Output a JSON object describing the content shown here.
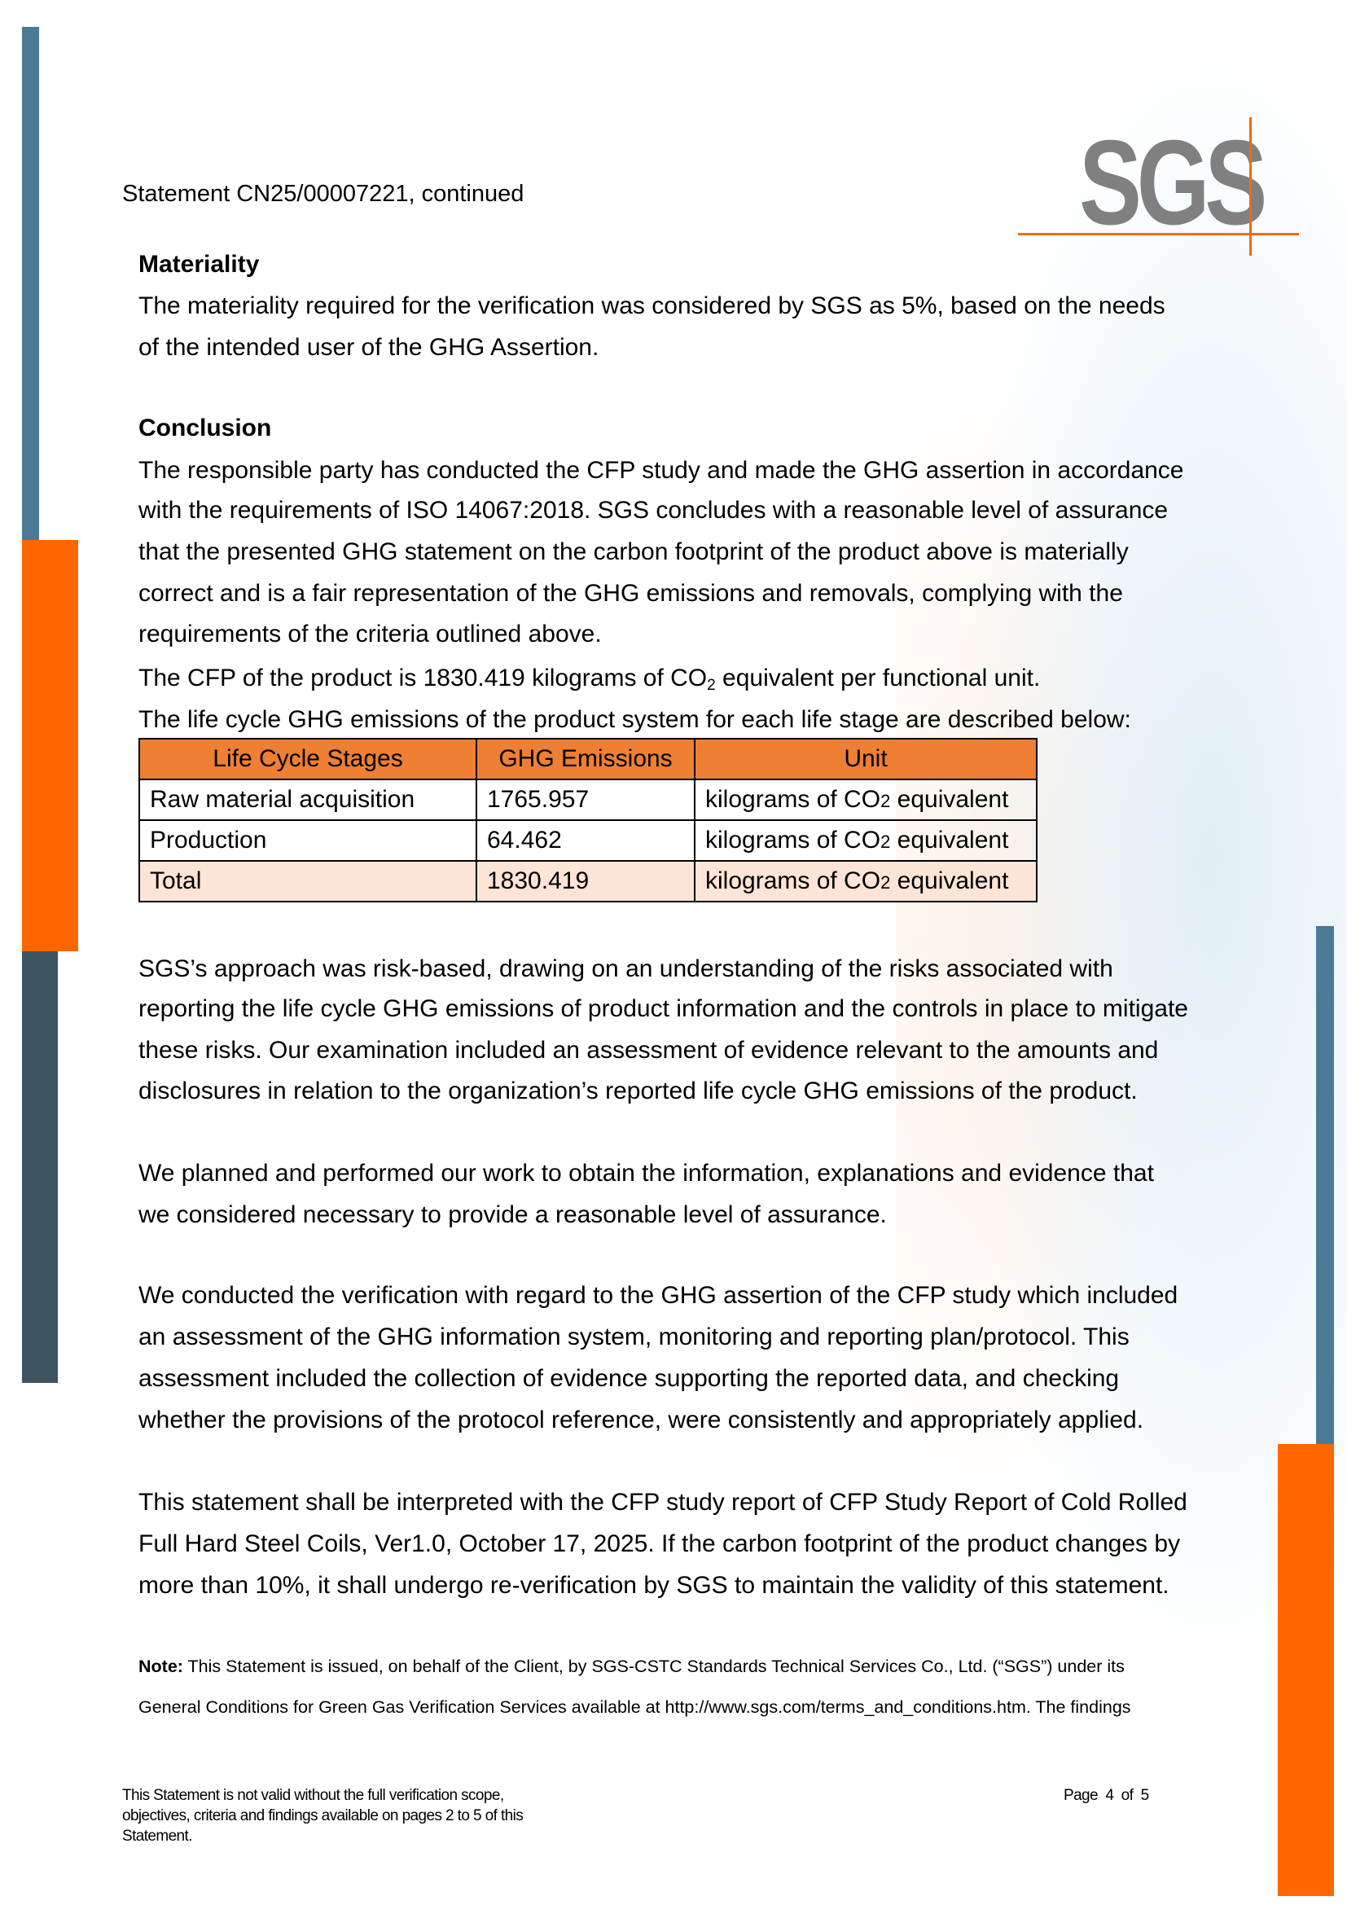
{
  "header": {
    "statement": "Statement CN25/00007221, continued",
    "logo": "SGS",
    "colors": {
      "logo_gray": "#808080",
      "accent_orange": "#f06a0f",
      "bar_blue": "#4a7a95",
      "bar_dark": "#3d5460"
    }
  },
  "materiality": {
    "heading": "Materiality",
    "lines": [
      "The materiality required for the verification was considered by SGS as 5%, based on the needs",
      "of the intended user of the GHG Assertion."
    ]
  },
  "conclusion": {
    "heading": "Conclusion",
    "lines": [
      "The responsible party has conducted the CFP study and made the GHG assertion in accordance",
      "with the requirements of ISO 14067:2018. SGS concludes with a reasonable level of assurance",
      "that the presented GHG statement on the carbon footprint of the product above is materially",
      "correct and is a fair representation of the GHG emissions and removals, complying with the",
      "requirements of the criteria outlined above."
    ],
    "cfp_pre": "The CFP of the product is 1830.419 kilograms of CO",
    "cfp_sub": "2",
    "cfp_post": " equivalent per functional unit.",
    "table_intro": "The life cycle GHG emissions of the product system for each life stage are described below:"
  },
  "table": {
    "headers": [
      "Life Cycle Stages",
      "GHG Emissions",
      "Unit"
    ],
    "rows": [
      {
        "stage": "Raw material acquisition",
        "value": "1765.957",
        "unit_pre": "kilograms of CO",
        "unit_sub": "2",
        "unit_post": " equivalent"
      },
      {
        "stage": "Production",
        "value": "64.462",
        "unit_pre": "kilograms of CO",
        "unit_sub": "2",
        "unit_post": " equivalent"
      },
      {
        "stage": "Total",
        "value": "1830.419",
        "unit_pre": "kilograms of CO",
        "unit_sub": "2",
        "unit_post": " equivalent"
      }
    ]
  },
  "paragraphs": [
    [
      "SGS’s approach was risk-based, drawing on an understanding of the risks associated with",
      "reporting the life cycle GHG emissions of product information and the controls in place to mitigate",
      "these risks. Our examination included an assessment of evidence relevant to the amounts and",
      "disclosures in relation to the organization’s reported life cycle GHG emissions of the product."
    ],
    [
      "We planned and performed our work to obtain the information, explanations and evidence that",
      "we considered necessary to provide a reasonable level of assurance."
    ],
    [
      "We conducted the verification with regard to the GHG assertion of the CFP study which included",
      "an assessment of the GHG information system, monitoring and reporting plan/protocol. This",
      "assessment included the collection of evidence supporting the reported data, and checking",
      "whether the provisions of the protocol reference, were consistently and appropriately applied."
    ],
    [
      "This statement shall be interpreted with the CFP study report of CFP Study Report of Cold Rolled",
      "Full Hard Steel Coils, Ver1.0, October 17, 2025. If the carbon footprint of the product changes by",
      "more than 10%, it shall undergo re-verification by SGS to maintain the validity of this statement."
    ]
  ],
  "note": {
    "label": "Note:",
    "line1": " This Statement is issued, on behalf of the Client, by SGS-CSTC Standards Technical Services Co., Ltd. (“SGS”) under its",
    "line2": "General Conditions for Green Gas Verification Services available at http://www.sgs.com/terms_and_conditions.htm. The findings"
  },
  "footer": {
    "lines": [
      "This Statement is not valid without the full verification scope,",
      "objectives, criteria and findings available on pages 2 to  5  of this",
      "Statement."
    ],
    "page": "Page  4  of  5"
  }
}
